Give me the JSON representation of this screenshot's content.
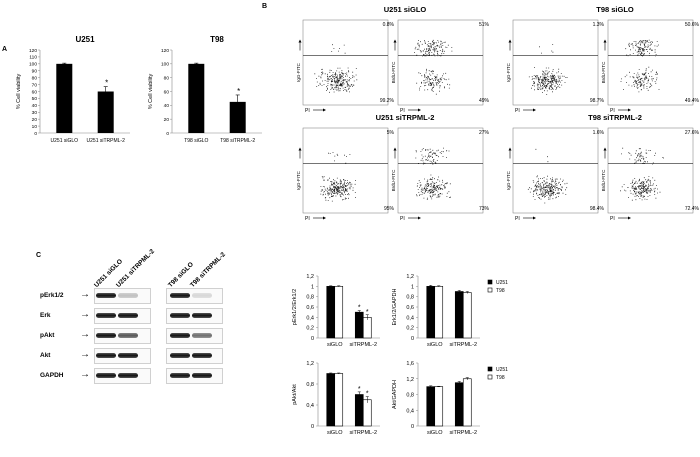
{
  "panels": {
    "A": "A",
    "B": "B",
    "C": "C"
  },
  "panelA": {
    "charts": [
      {
        "title": "U251",
        "ylabel": "% Cell viability",
        "categories": [
          "U251 siGLO",
          "U251 siTRPML-2"
        ],
        "values": [
          100,
          60
        ],
        "errors": [
          1,
          7
        ],
        "ticks": [
          "0",
          "10",
          "20",
          "30",
          "40",
          "50",
          "60",
          "70",
          "80",
          "90",
          "100",
          "110",
          "120"
        ],
        "ylim": [
          0,
          120
        ],
        "star": "*"
      },
      {
        "title": "T98",
        "ylabel": "% Cell viability",
        "categories": [
          "T98 siGLO",
          "T98 siTRPML-2"
        ],
        "values": [
          100,
          45
        ],
        "errors": [
          1,
          10
        ],
        "ticks": [
          "0",
          "20",
          "40",
          "60",
          "80",
          "100",
          "120"
        ],
        "ylim": [
          0,
          120
        ],
        "star": "*"
      }
    ]
  },
  "panelB": {
    "groups": [
      {
        "title": "U251 siGLO",
        "left": {
          "yl": "IgG-FITC",
          "xl": "PI",
          "tr": "0.8%",
          "br": "99.2%"
        },
        "right": {
          "yl": "BrdU-FITC",
          "xl": "PI",
          "tr": "51%",
          "br": "49%"
        }
      },
      {
        "title": "T98 siGLO",
        "left": {
          "yl": "IgG-FITC",
          "xl": "PI",
          "tr": "1.3%",
          "br": "98.7%"
        },
        "right": {
          "yl": "BrdU-FITC",
          "xl": "PI",
          "tr": "50.6%",
          "br": "49.4%"
        }
      },
      {
        "title": "U251 siTRPML-2",
        "left": {
          "yl": "IgG-FITC",
          "xl": "PI",
          "tr": "5%",
          "br": "95%"
        },
        "right": {
          "yl": "BrdU-FITC",
          "xl": "PI",
          "tr": "27%",
          "br": "73%"
        }
      },
      {
        "title": "T98 siTRPML-2",
        "left": {
          "yl": "IgG-FITC",
          "xl": "PI",
          "tr": "1.6%",
          "br": "98.4%"
        },
        "right": {
          "yl": "BrdU-FITC",
          "xl": "PI",
          "tr": "27.6%",
          "br": "72.4%"
        }
      }
    ]
  },
  "panelC": {
    "lanes": [
      "U251 siGLO",
      "U251 siTRPML-2",
      "T98 siGLO",
      "T98 siTRPML-2"
    ],
    "rows": [
      "pErk1/2",
      "Erk",
      "pAkt",
      "Akt",
      "GAPDH"
    ],
    "arrow": "→"
  },
  "chart_data": [
    {
      "type": "bar",
      "title": "U251",
      "categories": [
        "U251 siGLO",
        "U251 siTRPML-2"
      ],
      "values": [
        100,
        60
      ],
      "ylabel": "% Cell viability",
      "ylim": [
        0,
        120
      ]
    },
    {
      "type": "bar",
      "title": "T98",
      "categories": [
        "T98 siGLO",
        "T98 siTRPML-2"
      ],
      "values": [
        100,
        45
      ],
      "ylabel": "% Cell viability",
      "ylim": [
        0,
        120
      ]
    },
    {
      "type": "bar",
      "categories": [
        "siGLO",
        "siTRPML-2"
      ],
      "ylabel": "pErk1/2/Erk1/2",
      "ylim": [
        0,
        1.2
      ],
      "ticks": [
        "0",
        "0,2",
        "0,4",
        "0,6",
        "0,8",
        "1",
        "1,2"
      ],
      "series": [
        {
          "name": "U251",
          "values": [
            1.0,
            0.5
          ],
          "errors": [
            0.01,
            0.03
          ]
        },
        {
          "name": "T98",
          "values": [
            1.0,
            0.4
          ],
          "errors": [
            0.01,
            0.05
          ]
        }
      ],
      "star": "*",
      "legend": "top-right"
    },
    {
      "type": "bar",
      "categories": [
        "siGLO",
        "siTRPML-2"
      ],
      "ylabel": "Erk1/2/GAPDH",
      "ylim": [
        0,
        1.2
      ],
      "ticks": [
        "0",
        "0,2",
        "0,4",
        "0,6",
        "0,8",
        "1",
        "1,2"
      ],
      "series": [
        {
          "name": "U251",
          "values": [
            1.0,
            0.9
          ],
          "errors": [
            0.02,
            0.02
          ]
        },
        {
          "name": "T98",
          "values": [
            1.0,
            0.88
          ],
          "errors": [
            0.01,
            0.02
          ]
        }
      ],
      "legend": "top-right"
    },
    {
      "type": "bar",
      "categories": [
        "siGLO",
        "siTRPML-2"
      ],
      "ylabel": "pAkt/Akt",
      "ylim": [
        0,
        1.2
      ],
      "ticks": [
        "0",
        "0,4",
        "0,8",
        "1,2"
      ],
      "series": [
        {
          "name": "U251",
          "values": [
            1.0,
            0.6
          ],
          "errors": [
            0.01,
            0.05
          ]
        },
        {
          "name": "T98",
          "values": [
            1.0,
            0.5
          ],
          "errors": [
            0.01,
            0.06
          ]
        }
      ],
      "star": "*",
      "legend": "top-right"
    },
    {
      "type": "bar",
      "categories": [
        "siGLO",
        "siTRPML-2"
      ],
      "ylabel": "Akt/GAPDH",
      "ylim": [
        0,
        1.6
      ],
      "ticks": [
        "0",
        "0,4",
        "0,8",
        "1,2",
        "1,6"
      ],
      "series": [
        {
          "name": "U251",
          "values": [
            1.0,
            1.1
          ],
          "errors": [
            0.02,
            0.03
          ]
        },
        {
          "name": "T98",
          "values": [
            1.0,
            1.2
          ],
          "errors": [
            0.01,
            0.03
          ]
        }
      ],
      "legend": "top-right"
    }
  ]
}
